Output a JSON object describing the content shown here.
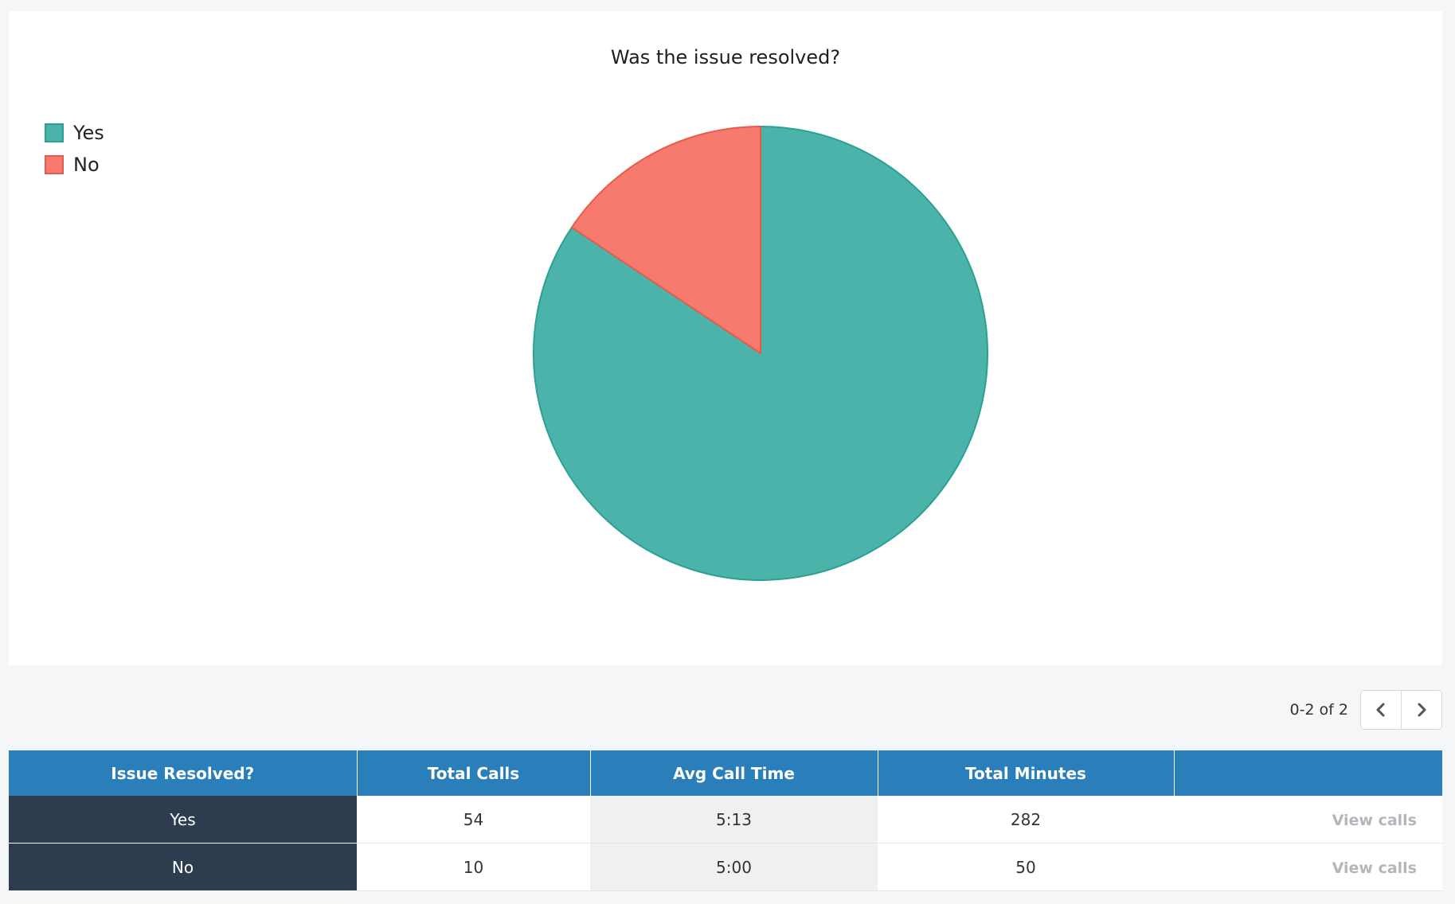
{
  "chart_data": {
    "type": "pie",
    "title": "Was the issue resolved?",
    "categories": [
      "Yes",
      "No"
    ],
    "values": [
      54,
      10
    ],
    "colors": [
      "#4bb3a9",
      "#f77a6e"
    ],
    "stroke_colors": [
      "#2aa192",
      "#e85a4f"
    ],
    "legend_position": "top-left"
  },
  "pager": {
    "range_text": "0-2 of 2",
    "prev_icon": "chevron-left-icon",
    "next_icon": "chevron-right-icon"
  },
  "table": {
    "headers": [
      "Issue Resolved?",
      "Total Calls",
      "Avg Call Time",
      "Total Minutes",
      ""
    ],
    "rows": [
      {
        "label": "Yes",
        "total_calls": "54",
        "avg_call_time": "5:13",
        "total_minutes": "282",
        "action": "View calls"
      },
      {
        "label": "No",
        "total_calls": "10",
        "avg_call_time": "5:00",
        "total_minutes": "50",
        "action": "View calls"
      }
    ]
  }
}
